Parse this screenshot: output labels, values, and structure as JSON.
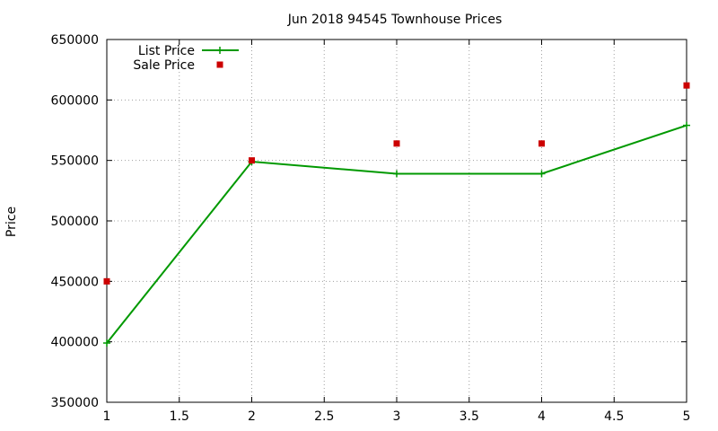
{
  "chart_data": {
    "type": "line",
    "title": "Jun 2018 94545 Townhouse Prices",
    "xlabel": "",
    "ylabel": "Price",
    "xlim": [
      1,
      5
    ],
    "ylim": [
      350000,
      650000
    ],
    "x_ticks": [
      "1",
      "1.5",
      "2",
      "2.5",
      "3",
      "3.5",
      "4",
      "4.5",
      "5"
    ],
    "y_ticks": [
      "350000",
      "400000",
      "450000",
      "500000",
      "550000",
      "600000",
      "650000"
    ],
    "grid": true,
    "legend_position": "top-left",
    "series": [
      {
        "name": "List Price",
        "style": "line-points",
        "marker": "plus",
        "color": "#009900",
        "x": [
          1,
          2,
          3,
          4,
          5
        ],
        "y": [
          399000,
          549000,
          539000,
          539000,
          579000
        ]
      },
      {
        "name": "Sale Price",
        "style": "points",
        "marker": "square",
        "color": "#cc0000",
        "x": [
          1,
          2,
          3,
          4,
          5
        ],
        "y": [
          450000,
          550000,
          564000,
          564000,
          612000
        ]
      }
    ]
  }
}
